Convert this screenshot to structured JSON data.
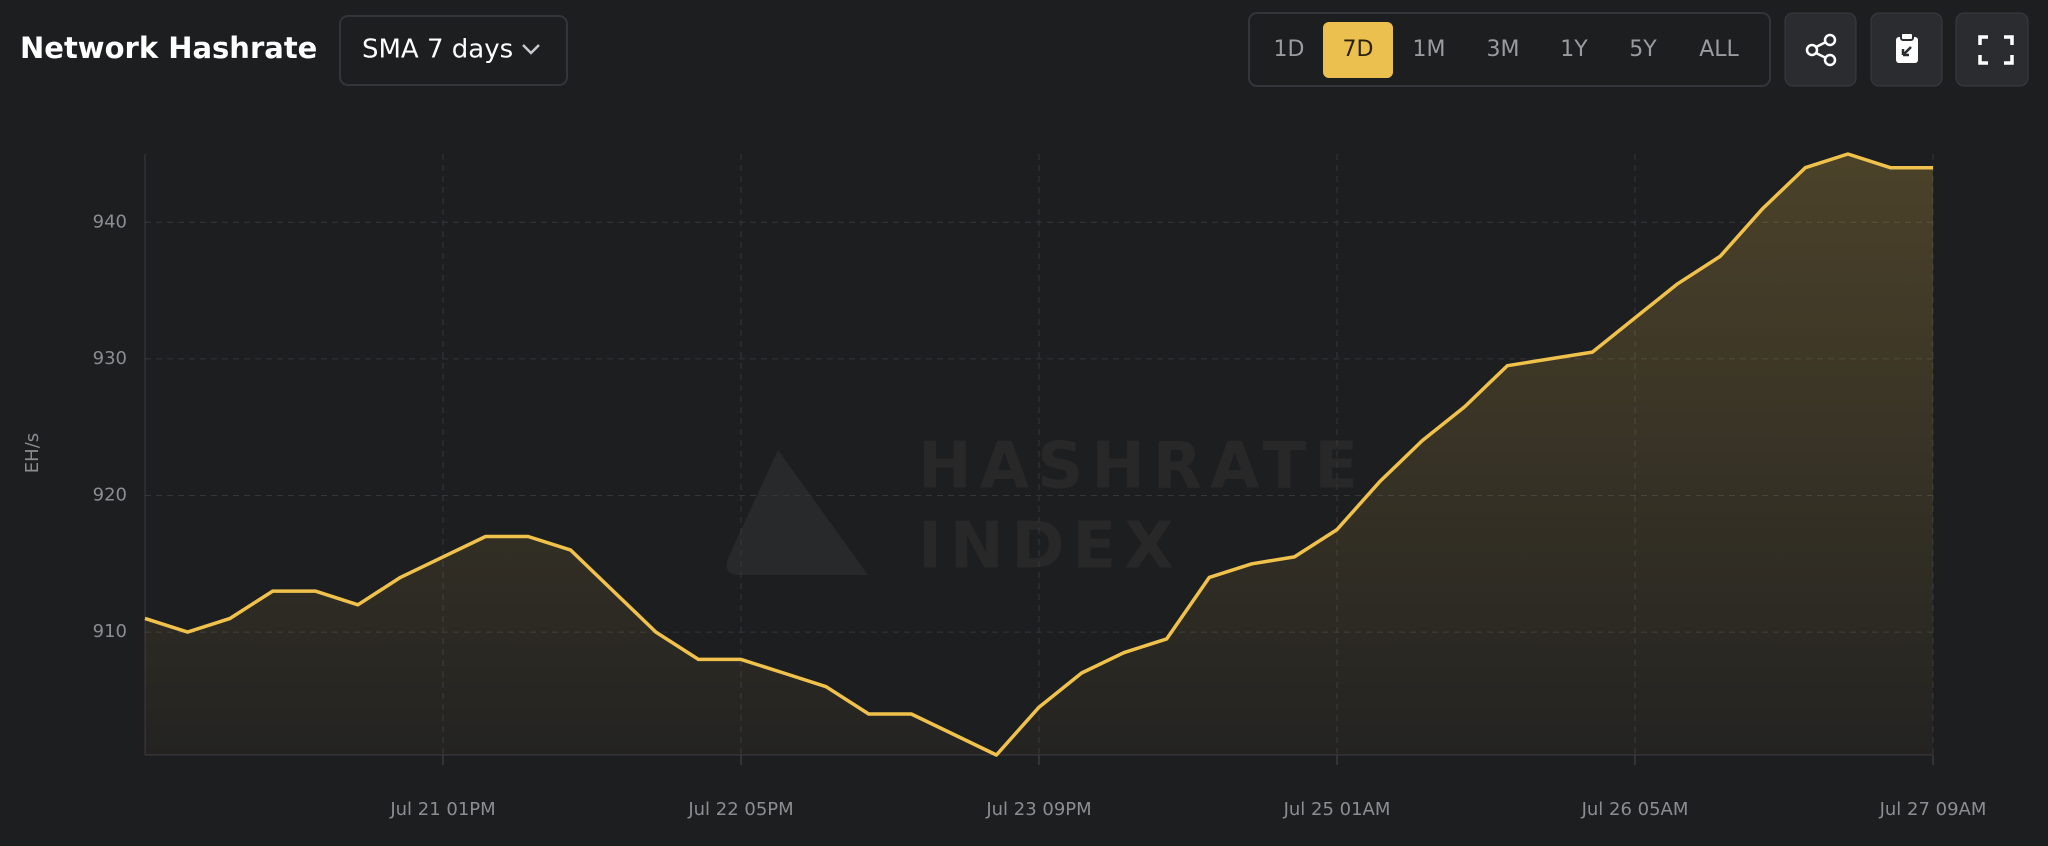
{
  "header": {
    "title": "Network Hashrate",
    "average": "SMA 7 days",
    "ranges": [
      "1D",
      "7D",
      "1M",
      "3M",
      "1Y",
      "5Y",
      "ALL"
    ],
    "active_range": 1
  },
  "watermark": [
    "HASHRATE",
    "INDEX"
  ],
  "chart_data": {
    "type": "line",
    "y_label": "EH/s",
    "color": "#f0c24b",
    "grid": true,
    "x": [
      "Jul 20 09AM",
      "Jul 20 01PM",
      "Jul 20 05PM",
      "Jul 20 09PM",
      "Jul 21 01AM",
      "Jul 21 05AM",
      "Jul 21 09AM",
      "Jul 21 01PM",
      "Jul 21 05PM",
      "Jul 21 09PM",
      "Jul 22 01AM",
      "Jul 22 05AM",
      "Jul 22 09AM",
      "Jul 22 01PM",
      "Jul 22 05PM",
      "Jul 22 09PM",
      "Jul 23 01AM",
      "Jul 23 05AM",
      "Jul 23 09AM",
      "Jul 23 01PM",
      "Jul 23 05PM",
      "Jul 23 09PM",
      "Jul 24 01AM",
      "Jul 24 05AM",
      "Jul 24 09AM",
      "Jul 24 01PM",
      "Jul 24 05PM",
      "Jul 24 09PM",
      "Jul 25 01AM",
      "Jul 25 05AM",
      "Jul 25 09AM",
      "Jul 25 01PM",
      "Jul 25 05PM",
      "Jul 25 09PM",
      "Jul 26 01AM",
      "Jul 26 05AM",
      "Jul 26 09AM",
      "Jul 26 01PM",
      "Jul 26 05PM",
      "Jul 26 09PM",
      "Jul 27 01AM",
      "Jul 27 05AM",
      "Jul 27 09AM"
    ],
    "values": [
      911,
      910,
      911,
      913,
      913,
      912,
      914,
      915.5,
      917,
      917,
      916,
      913,
      910,
      908,
      908,
      907,
      906,
      904,
      904,
      902.5,
      901,
      904.5,
      907,
      908.5,
      909.5,
      914,
      915,
      915.5,
      917.5,
      921,
      924,
      926.5,
      929.5,
      930,
      930.5,
      933,
      935.5,
      937.5,
      941,
      944,
      945,
      944,
      944
    ],
    "xlim": [
      "Jul 20 09AM",
      "Jul 27 09AM"
    ],
    "xticks": [
      "Jul 21 01PM",
      "Jul 22 05PM",
      "Jul 23 09PM",
      "Jul 25 01AM",
      "Jul 26 05AM",
      "Jul 27 09AM"
    ],
    "ylim": [
      901,
      945
    ],
    "yticks": [
      910,
      920,
      930,
      940
    ]
  }
}
